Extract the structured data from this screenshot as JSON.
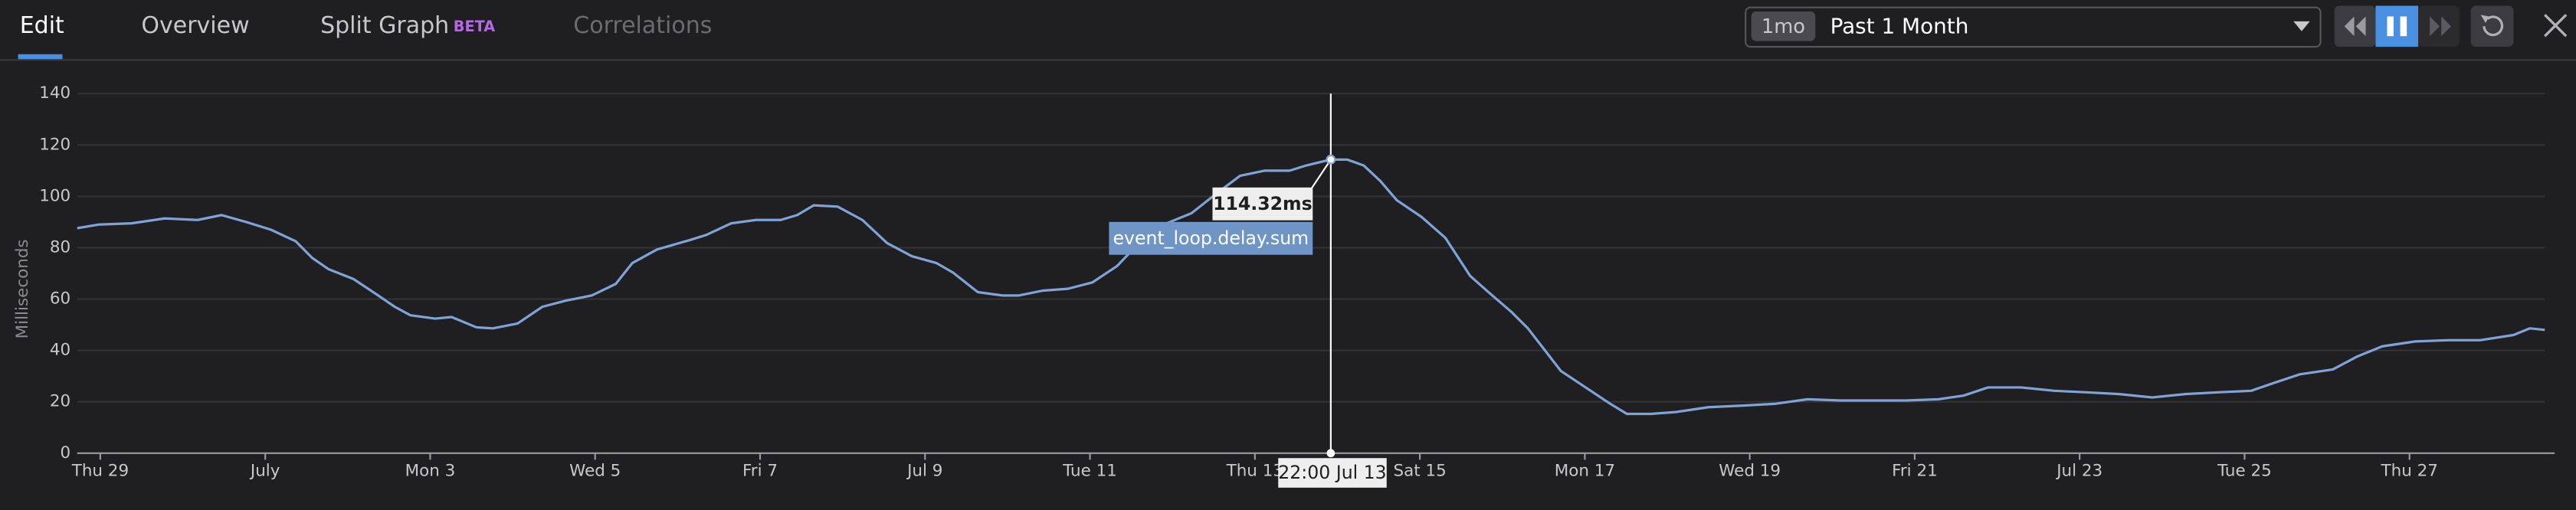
{
  "tabs": [
    "Edit",
    "Overview",
    "Split Graph",
    "Correlations"
  ],
  "badge": "BETA",
  "time_range": {
    "short": "1mo",
    "label": "Past 1 Month"
  },
  "chart_data": {
    "type": "line",
    "y_label": "Milliseconds",
    "ylim": [
      0,
      140
    ],
    "yticks": [
      0,
      20,
      40,
      60,
      80,
      100,
      120,
      140
    ],
    "xlim": [
      -0.28,
      29.64
    ],
    "xticks": [
      {
        "value": 0,
        "label": "Thu 29"
      },
      {
        "value": 2,
        "label": "July"
      },
      {
        "value": 4,
        "label": "Mon 3"
      },
      {
        "value": 6,
        "label": "Wed 5"
      },
      {
        "value": 8,
        "label": "Fri 7"
      },
      {
        "value": 10,
        "label": "Jul 9"
      },
      {
        "value": 12,
        "label": "Tue 11"
      },
      {
        "value": 14,
        "label": "Thu 13"
      },
      {
        "value": 16,
        "label": "Sat 15"
      },
      {
        "value": 18,
        "label": "Mon 17"
      },
      {
        "value": 20,
        "label": "Wed 19"
      },
      {
        "value": 22,
        "label": "Fri 21"
      },
      {
        "value": 24,
        "label": "Jul 23"
      },
      {
        "value": 26,
        "label": "Tue 25"
      },
      {
        "value": 28,
        "label": "Thu 27"
      }
    ],
    "grid": true,
    "x": [
      -0.28,
      -0.02,
      0.38,
      0.78,
      1.18,
      1.47,
      1.77,
      2.07,
      2.37,
      2.57,
      2.77,
      3.07,
      3.37,
      3.57,
      3.76,
      4.06,
      4.26,
      4.56,
      4.76,
      5.06,
      5.36,
      5.66,
      5.96,
      6.25,
      6.45,
      6.75,
      7.15,
      7.35,
      7.65,
      7.95,
      8.25,
      8.45,
      8.65,
      8.94,
      9.24,
      9.54,
      9.84,
      10.14,
      10.34,
      10.64,
      10.94,
      11.14,
      11.43,
      11.73,
      12.03,
      12.33,
      12.63,
      12.93,
      13.23,
      13.53,
      13.82,
      14.12,
      14.42,
      14.62,
      14.92,
      15.12,
      15.32,
      15.52,
      15.72,
      16.02,
      16.31,
      16.61,
      16.81,
      17.11,
      17.31,
      17.51,
      17.71,
      18.01,
      18.31,
      18.51,
      18.8,
      19.1,
      19.5,
      19.9,
      20.3,
      20.7,
      21.1,
      21.49,
      21.89,
      22.29,
      22.59,
      22.89,
      23.29,
      23.69,
      24.08,
      24.48,
      24.88,
      25.28,
      25.68,
      26.08,
      26.37,
      26.67,
      27.07,
      27.37,
      27.67,
      28.07,
      28.47,
      28.86,
      29.26,
      29.46,
      29.64
    ],
    "series": [
      {
        "name": "event_loop.delay.sum",
        "color": "#7fa3d6",
        "values": [
          87.6,
          89,
          89.5,
          91.4,
          90.8,
          92.7,
          90,
          87,
          82.5,
          76,
          71.6,
          67.8,
          61.4,
          57,
          53.7,
          52.4,
          53,
          49,
          48.6,
          50.5,
          57,
          59.5,
          61.4,
          65.9,
          74,
          79.3,
          83,
          85,
          89.5,
          90.8,
          90.8,
          92.7,
          96.5,
          96,
          90.8,
          81.8,
          76.7,
          74,
          70.3,
          62.7,
          61.4,
          61.4,
          63.3,
          64,
          66.5,
          72.9,
          83,
          89.5,
          93.4,
          101,
          108,
          110,
          110,
          112,
          114.32,
          114.3,
          112,
          106,
          98.5,
          92,
          83.8,
          69,
          63.3,
          55,
          48.6,
          40.3,
          32,
          25.6,
          19.2,
          15.3,
          15.3,
          16,
          17.9,
          18.5,
          19.2,
          21,
          20.5,
          20.5,
          20.5,
          21,
          22.4,
          25.6,
          25.6,
          24.3,
          23.7,
          23,
          21.7,
          23,
          23.7,
          24.3,
          27.5,
          30.7,
          32.6,
          37.7,
          41.6,
          43.5,
          44,
          44,
          46,
          48.6,
          48
        ]
      }
    ],
    "tooltip": {
      "x": 14.92,
      "x_label": "22:00 Jul 13",
      "value": 114.32,
      "value_label": "114.32ms"
    }
  }
}
